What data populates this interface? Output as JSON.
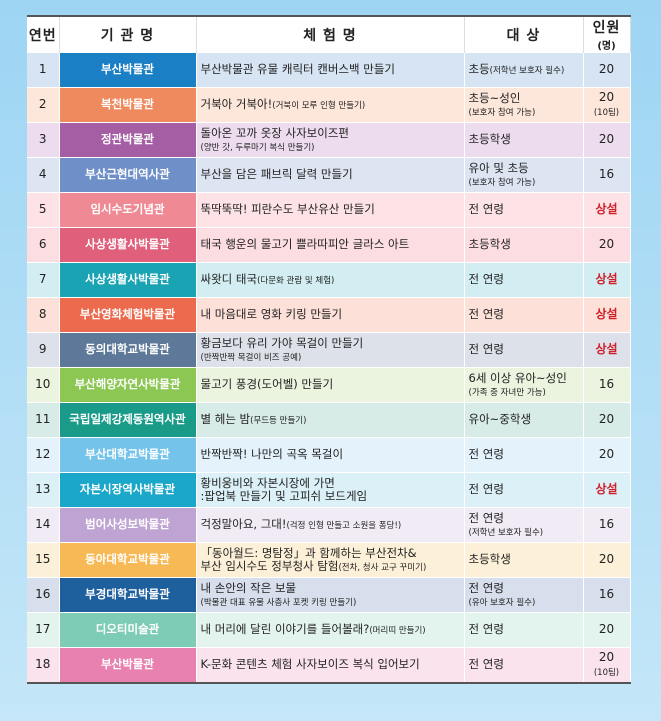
{
  "header": {
    "no": "연번",
    "org": "기 관 명",
    "title": "체 험 명",
    "target": "대 상",
    "count": "인원",
    "count_unit": "(명)"
  },
  "rows": [
    {
      "no": "1",
      "org": "부산박물관",
      "color": "#1a7fc4",
      "bg": "#d6e4f3",
      "title": "부산박물관 유물 캐릭터 캔버스백 만들기",
      "title_small": "",
      "title2": "",
      "title2_small": "",
      "target": "초등",
      "target_small": "(저학년 보호자 필수)",
      "target2": "",
      "count": "20",
      "count_sub": ""
    },
    {
      "no": "2",
      "org": "복천박물관",
      "color": "#ef8a5e",
      "bg": "#fde6da",
      "title": "거북아 거북아!",
      "title_small": "(거북이 모루 인형 만들기)",
      "title2": "",
      "title2_small": "",
      "target": "초등~성인",
      "target_small": "",
      "target2": "(보호자 참여 가능)",
      "count": "20",
      "count_sub": "(10팀)"
    },
    {
      "no": "3",
      "org": "정관박물관",
      "color": "#a55ea3",
      "bg": "#ecdcee",
      "title": "돌아온 꼬까 옷장 사자보이즈편",
      "title_small": "",
      "title2": "",
      "title2_small": "(양반 갓, 두루마기 복식 만들기)",
      "target": "초등학생",
      "target_small": "",
      "target2": "",
      "count": "20",
      "count_sub": ""
    },
    {
      "no": "4",
      "org": "부산근현대역사관",
      "color": "#6f8fc8",
      "bg": "#dde5f3",
      "title": "부산을 담은 패브릭 달력 만들기",
      "title_small": "",
      "title2": "",
      "title2_small": "",
      "target": "유아 및 초등",
      "target_small": "",
      "target2": "(보호자 참여 가능)",
      "count": "16",
      "count_sub": ""
    },
    {
      "no": "5",
      "org": "임시수도기념관",
      "color": "#ef8a94",
      "bg": "#fde3e5",
      "title": "뚝딱뚝딱! 피란수도 부산유산 만들기",
      "title_small": "",
      "title2": "",
      "title2_small": "",
      "target": "전 연령",
      "target_small": "",
      "target2": "",
      "count": "상설",
      "count_sub": "",
      "permanent": true
    },
    {
      "no": "6",
      "org": "사상생활사박물관",
      "color": "#e05f7a",
      "bg": "#fcdde2",
      "title": "태국 행운의 물고기 쁠라따피안 글라스 아트",
      "title_small": "",
      "title2": "",
      "title2_small": "",
      "target": "초등학생",
      "target_small": "",
      "target2": "",
      "count": "20",
      "count_sub": ""
    },
    {
      "no": "7",
      "org": "사상생활사박물관",
      "color": "#1aa3b3",
      "bg": "#d3eef2",
      "title": "싸왓디 태국",
      "title_small": "(다문화 관람 및 체험)",
      "title2": "",
      "title2_small": "",
      "target": "전 연령",
      "target_small": "",
      "target2": "",
      "count": "상설",
      "count_sub": "",
      "permanent": true
    },
    {
      "no": "8",
      "org": "부산영화체험박물관",
      "color": "#ec6b4e",
      "bg": "#fde1d9",
      "title": "내 마음대로 영화 키링 만들기",
      "title_small": "",
      "title2": "",
      "title2_small": "",
      "target": "전 연령",
      "target_small": "",
      "target2": "",
      "count": "상설",
      "count_sub": "",
      "permanent": true
    },
    {
      "no": "9",
      "org": "동의대학교박물관",
      "color": "#5d7898",
      "bg": "#dde2ea",
      "title": "황금보다 유리 가야 목걸이 만들기",
      "title_small": "",
      "title2": "",
      "title2_small": "(반짝반짝 목걸이 비즈 공예)",
      "target": "전 연령",
      "target_small": "",
      "target2": "",
      "count": "상설",
      "count_sub": "",
      "permanent": true
    },
    {
      "no": "10",
      "org": "부산해양자연사박물관",
      "color": "#8cc653",
      "bg": "#ebf4df",
      "title": "물고기 풍경(도어벨) 만들기",
      "title_small": "",
      "title2": "",
      "title2_small": "",
      "target": "6세 이상 유아~성인",
      "target_small": "",
      "target2": "(가족 중 자녀만 가능)",
      "count": "16",
      "count_sub": ""
    },
    {
      "no": "11",
      "org": "국립일제강제동원역사관",
      "color": "#1a9b8a",
      "bg": "#d7ebe7",
      "title": "별 헤는 밤",
      "title_small": "(무드등 만들기)",
      "title2": "",
      "title2_small": "",
      "target": "유아~중학생",
      "target_small": "",
      "target2": "",
      "count": "20",
      "count_sub": ""
    },
    {
      "no": "12",
      "org": "부산대학교박물관",
      "color": "#74c3ea",
      "bg": "#e4f3fb",
      "title": "반짝반짝! 나만의 곡옥 목걸이",
      "title_small": "",
      "title2": "",
      "title2_small": "",
      "target": "전 연령",
      "target_small": "",
      "target2": "",
      "count": "20",
      "count_sub": ""
    },
    {
      "no": "13",
      "org": "자본시장역사박물관",
      "color": "#1aa7c9",
      "bg": "#dbf0f7",
      "title": "황비웅비와 자본시장에 가면",
      "title_small": "",
      "title2": ":팝업북 만들기 및 고피쉬 보드게임",
      "title2_small": "",
      "target": "전 연령",
      "target_small": "",
      "target2": "",
      "count": "상설",
      "count_sub": "",
      "permanent": true
    },
    {
      "no": "14",
      "org": "범어사성보박물관",
      "color": "#bfa3d2",
      "bg": "#f1ebf6",
      "title": "걱정말아요, 그대!",
      "title_small": "(걱정 인형 만들고 소원을 퐁당!)",
      "title2": "",
      "title2_small": "",
      "target": "전 연령",
      "target_small": "",
      "target2": "(저학년 보호자 필수)",
      "count": "16",
      "count_sub": ""
    },
    {
      "no": "15",
      "org": "동아대학교박물관",
      "color": "#f7b955",
      "bg": "#fdf0d8",
      "title": "「동아월드: 명탐정」과 함께하는 부산전차&",
      "title_small": "",
      "title2": " 부산 임시수도 정부청사 탐험",
      "title2_small": "(전차, 청사 교구 꾸미기)",
      "target": "초등학생",
      "target_small": "",
      "target2": "",
      "count": "20",
      "count_sub": ""
    },
    {
      "no": "16",
      "org": "부경대학교박물관",
      "color": "#1e5f9e",
      "bg": "#d7dfec",
      "title": "내 손안의 작은 보물",
      "title_small": "",
      "title2": "",
      "title2_small": "(박물관 대표 유물 사층사 포켓 키링 만들기)",
      "target": "전 연령",
      "target_small": "",
      "target2": "(유아 보호자 필수)",
      "count": "16",
      "count_sub": ""
    },
    {
      "no": "17",
      "org": "디오티미술관",
      "color": "#7ecbb6",
      "bg": "#e3f4ef",
      "title": "내 머리에 달린 이야기를 들어볼래?",
      "title_small": "(머리띠 만들기)",
      "title2": "",
      "title2_small": "",
      "target": "전 연령",
      "target_small": "",
      "target2": "",
      "count": "20",
      "count_sub": ""
    },
    {
      "no": "18",
      "org": "부산박물관",
      "color": "#e880b0",
      "bg": "#fbe3ee",
      "title": "K-문화 콘텐츠 체험 사자보이즈 복식 입어보기",
      "title_small": "",
      "title2": "",
      "title2_small": "",
      "target": "전 연령",
      "target_small": "",
      "target2": "",
      "count": "20",
      "count_sub": "(10팀)"
    }
  ]
}
